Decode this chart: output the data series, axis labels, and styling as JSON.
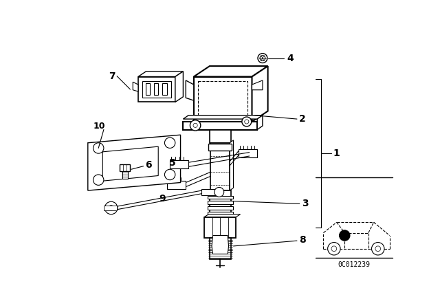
{
  "bg_color": "#ffffff",
  "line_color": "#000000",
  "fig_width": 6.4,
  "fig_height": 4.48,
  "dpi": 100,
  "code_text": "0C012239"
}
